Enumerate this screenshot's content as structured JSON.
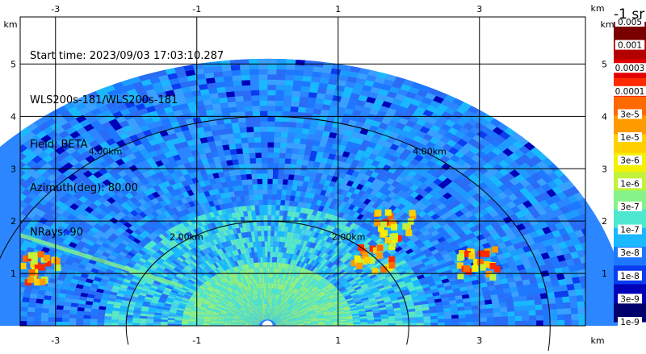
{
  "info": {
    "start_time": "Start time: 2023/09/03 17:03:10.287",
    "instrument": "WLS200s-181/WLS200s-181",
    "field": "Field: BETA",
    "azimuth": "Azimuth(deg): 80.00",
    "nrays": "NRays: 90"
  },
  "colorbar": {
    "units_label": "-1 sr",
    "labels": [
      "0.005",
      "0.001",
      "0.0003",
      "0.0001",
      "3e-5",
      "1e-5",
      "3e-6",
      "1e-6",
      "3e-7",
      "1e-7",
      "3e-8",
      "1e-8",
      "3e-9",
      "1e-9"
    ],
    "colors": [
      "#7a0000",
      "#b30000",
      "#e20000",
      "#ff2a00",
      "#ff6a00",
      "#ff9a00",
      "#ffd000",
      "#f3f000",
      "#c2f23a",
      "#86f28a",
      "#4ee8d0",
      "#19b8ff",
      "#1e78ff",
      "#0b3cf0",
      "#0000b8",
      "#00006c"
    ]
  },
  "chart_data": {
    "type": "heatmap",
    "plot_kind": "RHI polar sector (range-height indicator)",
    "field": "BETA",
    "units": "-1 sr",
    "xlabel": "km",
    "ylabel": "km",
    "xlim": [
      -3.5,
      4.5
    ],
    "ylim": [
      0,
      5.9
    ],
    "x_ticks": [
      -3,
      -1,
      1,
      3
    ],
    "y_ticks": [
      1,
      2,
      3,
      4,
      5
    ],
    "max_range_km": 5.1,
    "range_rings_km": [
      2,
      4
    ],
    "ring_labels": [
      "2.00km",
      "4.00km"
    ],
    "grid": true,
    "background_beta": "1e-7 to 1e-8",
    "near_range_beta": "3e-7 to 1e-6",
    "aerosol_features": [
      {
        "x": -3.2,
        "y": 1.1,
        "beta": "3e-5 to 1e-4"
      },
      {
        "x": 1.5,
        "y": 1.3,
        "beta": "3e-5 to 3e-4"
      },
      {
        "x": 1.8,
        "y": 1.9,
        "beta": "3e-5 to 1e-4"
      },
      {
        "x": 3.0,
        "y": 1.2,
        "beta": "1e-5 to 3e-5"
      }
    ]
  }
}
